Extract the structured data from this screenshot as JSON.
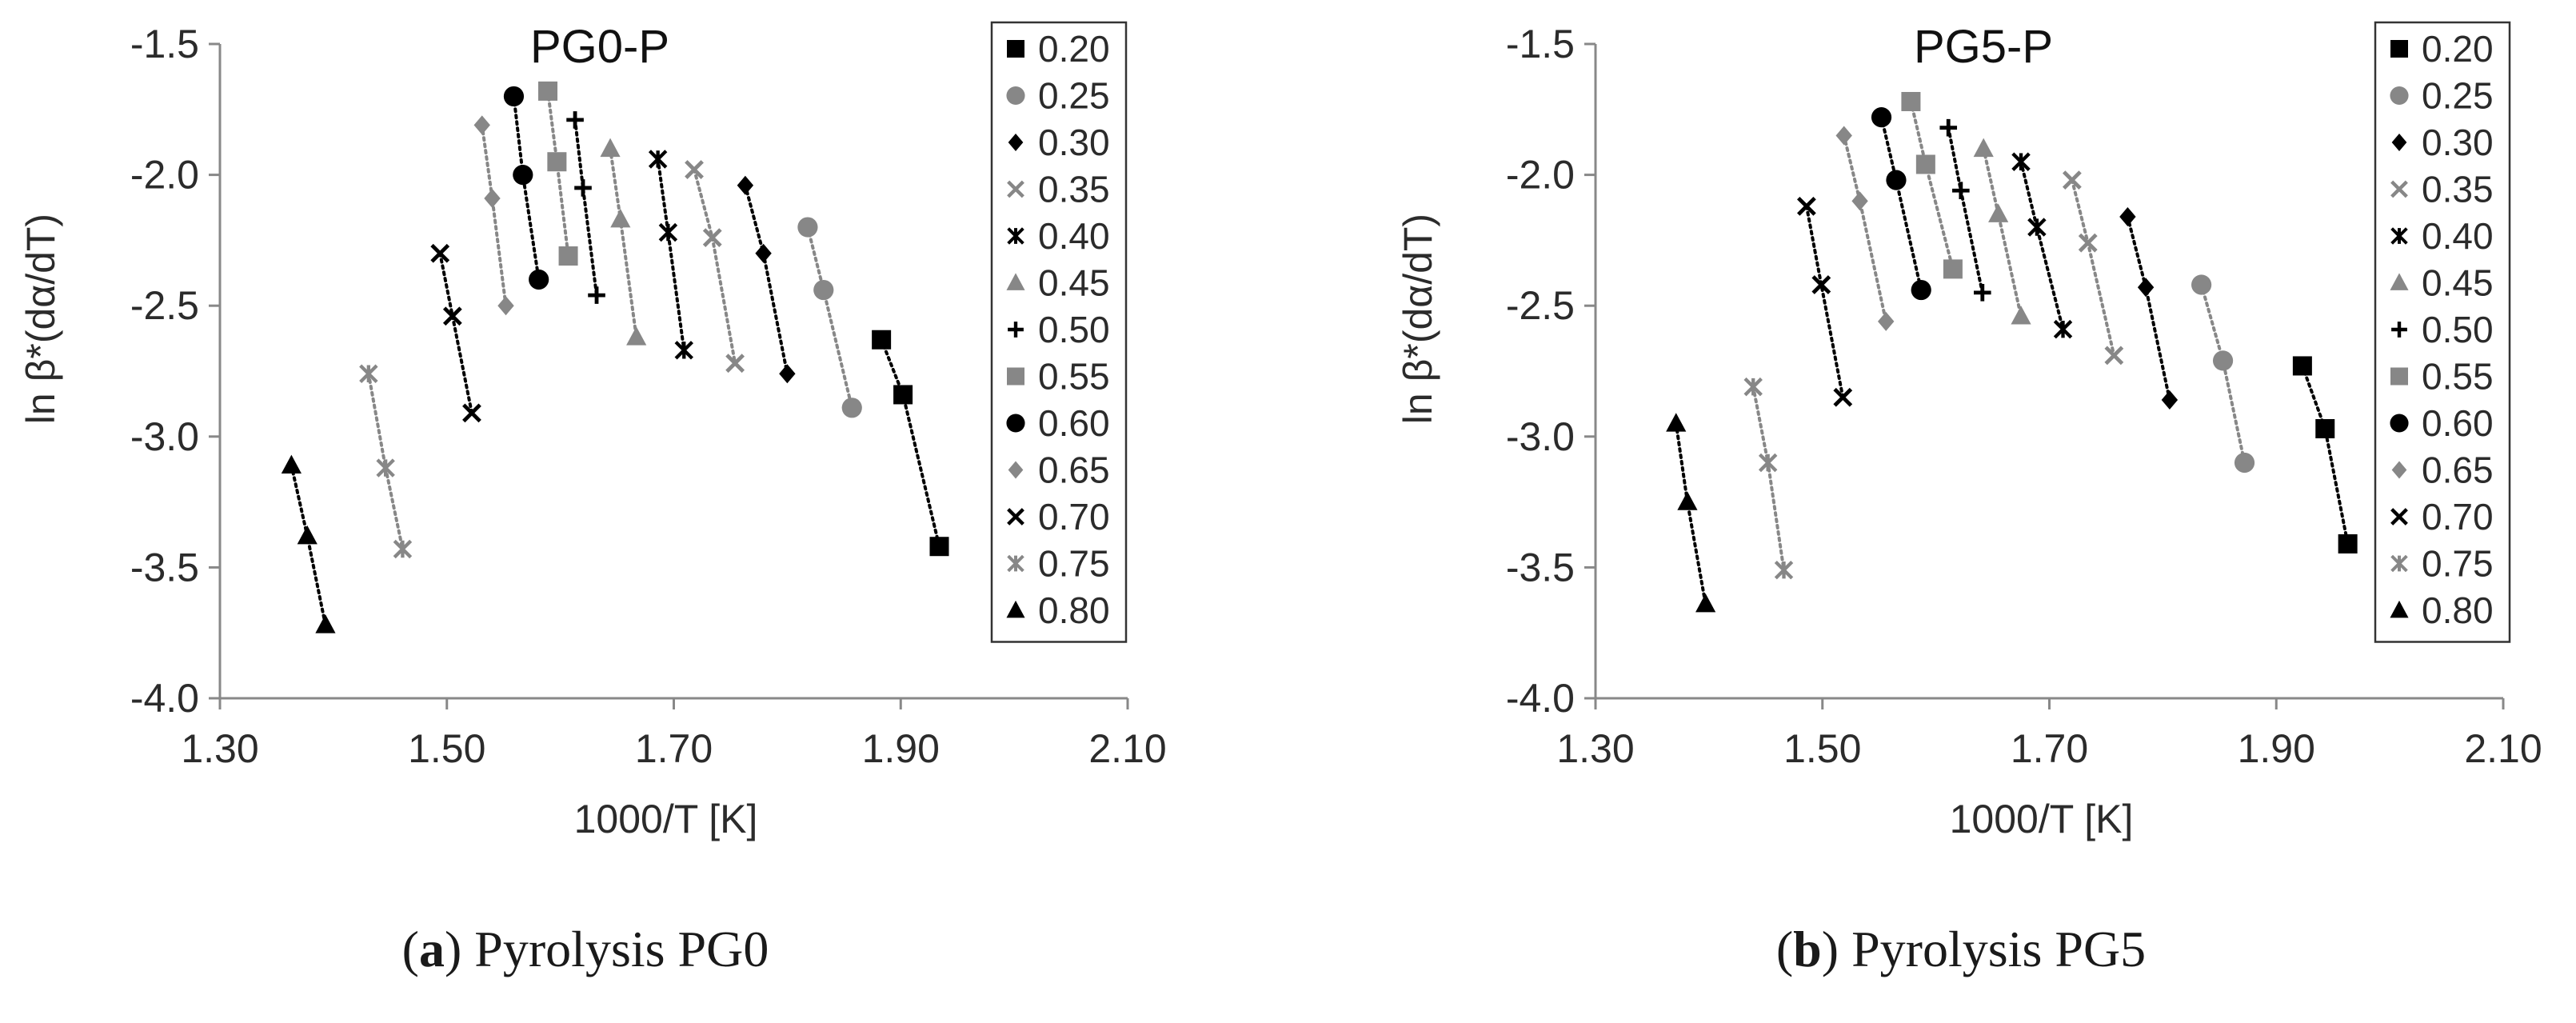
{
  "chart_data": [
    {
      "type": "scatter",
      "title": "PG0-P",
      "xlabel": "1000/T [K]",
      "ylabel": "ln β*(dα/dT)",
      "xlim": [
        1.3,
        2.1
      ],
      "ylim": [
        -4.0,
        -1.5
      ],
      "xticks": [
        "1.30",
        "1.50",
        "1.70",
        "1.90",
        "2.10"
      ],
      "yticks": [
        "-1.5",
        "-2.0",
        "-2.5",
        "-3.0",
        "-3.5",
        "-4.0"
      ],
      "legend_position": "right-inside",
      "series": [
        {
          "name": "0.20",
          "points": [
            [
              1.883,
              -2.63
            ],
            [
              1.902,
              -2.84
            ],
            [
              1.934,
              -3.42
            ]
          ]
        },
        {
          "name": "0.25",
          "points": [
            [
              1.818,
              -2.2
            ],
            [
              1.832,
              -2.44
            ],
            [
              1.857,
              -2.89
            ]
          ]
        },
        {
          "name": "0.30",
          "points": [
            [
              1.763,
              -2.04
            ],
            [
              1.779,
              -2.3
            ],
            [
              1.8,
              -2.76
            ]
          ]
        },
        {
          "name": "0.35",
          "points": [
            [
              1.718,
              -1.98
            ],
            [
              1.734,
              -2.24
            ],
            [
              1.754,
              -2.72
            ]
          ]
        },
        {
          "name": "0.40",
          "points": [
            [
              1.686,
              -1.94
            ],
            [
              1.695,
              -2.22
            ],
            [
              1.709,
              -2.67
            ]
          ]
        },
        {
          "name": "0.45",
          "points": [
            [
              1.644,
              -1.9
            ],
            [
              1.653,
              -2.17
            ],
            [
              1.667,
              -2.62
            ]
          ]
        },
        {
          "name": "0.50",
          "points": [
            [
              1.613,
              -1.79
            ],
            [
              1.62,
              -2.05
            ],
            [
              1.632,
              -2.46
            ]
          ]
        },
        {
          "name": "0.55",
          "points": [
            [
              1.589,
              -1.68
            ],
            [
              1.597,
              -1.95
            ],
            [
              1.607,
              -2.31
            ]
          ]
        },
        {
          "name": "0.60",
          "points": [
            [
              1.559,
              -1.7
            ],
            [
              1.567,
              -2.0
            ],
            [
              1.581,
              -2.4
            ]
          ]
        },
        {
          "name": "0.65",
          "points": [
            [
              1.531,
              -1.81
            ],
            [
              1.54,
              -2.09
            ],
            [
              1.552,
              -2.5
            ]
          ]
        },
        {
          "name": "0.70",
          "points": [
            [
              1.494,
              -2.3
            ],
            [
              1.505,
              -2.54
            ],
            [
              1.522,
              -2.91
            ]
          ]
        },
        {
          "name": "0.75",
          "points": [
            [
              1.431,
              -2.76
            ],
            [
              1.446,
              -3.12
            ],
            [
              1.461,
              -3.43
            ]
          ]
        },
        {
          "name": "0.80",
          "points": [
            [
              1.363,
              -3.11
            ],
            [
              1.377,
              -3.38
            ],
            [
              1.393,
              -3.72
            ]
          ]
        }
      ]
    },
    {
      "type": "scatter",
      "title": "PG5-P",
      "xlabel": "1000/T [K]",
      "ylabel": "ln β*(dα/dT)",
      "xlim": [
        1.3,
        2.1
      ],
      "ylim": [
        -4.0,
        -1.5
      ],
      "xticks": [
        "1.30",
        "1.50",
        "1.70",
        "1.90",
        "2.10"
      ],
      "yticks": [
        "-1.5",
        "-2.0",
        "-2.5",
        "-3.0",
        "-3.5",
        "-4.0"
      ],
      "legend_position": "right-inside",
      "series": [
        {
          "name": "0.20",
          "points": [
            [
              1.923,
              -2.73
            ],
            [
              1.943,
              -2.97
            ],
            [
              1.963,
              -3.41
            ]
          ]
        },
        {
          "name": "0.25",
          "points": [
            [
              1.834,
              -2.42
            ],
            [
              1.853,
              -2.71
            ],
            [
              1.872,
              -3.1
            ]
          ]
        },
        {
          "name": "0.30",
          "points": [
            [
              1.769,
              -2.16
            ],
            [
              1.785,
              -2.43
            ],
            [
              1.806,
              -2.86
            ]
          ]
        },
        {
          "name": "0.35",
          "points": [
            [
              1.72,
              -2.02
            ],
            [
              1.734,
              -2.26
            ],
            [
              1.757,
              -2.69
            ]
          ]
        },
        {
          "name": "0.40",
          "points": [
            [
              1.675,
              -1.95
            ],
            [
              1.689,
              -2.2
            ],
            [
              1.712,
              -2.59
            ]
          ]
        },
        {
          "name": "0.45",
          "points": [
            [
              1.642,
              -1.9
            ],
            [
              1.655,
              -2.15
            ],
            [
              1.675,
              -2.54
            ]
          ]
        },
        {
          "name": "0.50",
          "points": [
            [
              1.611,
              -1.82
            ],
            [
              1.622,
              -2.06
            ],
            [
              1.641,
              -2.45
            ]
          ]
        },
        {
          "name": "0.55",
          "points": [
            [
              1.578,
              -1.72
            ],
            [
              1.591,
              -1.96
            ],
            [
              1.615,
              -2.36
            ]
          ]
        },
        {
          "name": "0.60",
          "points": [
            [
              1.552,
              -1.78
            ],
            [
              1.565,
              -2.02
            ],
            [
              1.587,
              -2.44
            ]
          ]
        },
        {
          "name": "0.65",
          "points": [
            [
              1.519,
              -1.85
            ],
            [
              1.533,
              -2.1
            ],
            [
              1.556,
              -2.56
            ]
          ]
        },
        {
          "name": "0.70",
          "points": [
            [
              1.486,
              -2.12
            ],
            [
              1.499,
              -2.42
            ],
            [
              1.518,
              -2.85
            ]
          ]
        },
        {
          "name": "0.75",
          "points": [
            [
              1.439,
              -2.81
            ],
            [
              1.452,
              -3.1
            ],
            [
              1.466,
              -3.51
            ]
          ]
        },
        {
          "name": "0.80",
          "points": [
            [
              1.371,
              -2.95
            ],
            [
              1.381,
              -3.25
            ],
            [
              1.397,
              -3.64
            ]
          ]
        }
      ]
    }
  ],
  "captions": {
    "a_letter": "a",
    "a_text": "Pyrolysis PG0",
    "b_letter": "b",
    "b_text": "Pyrolysis PG5"
  },
  "colors": {
    "black": "#000000",
    "gray": "#878787",
    "axis": "#888888",
    "text": "#2b2b2b"
  },
  "series_styles": {
    "0.20": {
      "marker": "square",
      "color": "black"
    },
    "0.25": {
      "marker": "circle",
      "color": "gray"
    },
    "0.30": {
      "marker": "diamond",
      "color": "black"
    },
    "0.35": {
      "marker": "x",
      "color": "gray"
    },
    "0.40": {
      "marker": "asterisk",
      "color": "black"
    },
    "0.45": {
      "marker": "triangle",
      "color": "gray"
    },
    "0.50": {
      "marker": "plus",
      "color": "black"
    },
    "0.55": {
      "marker": "square",
      "color": "gray"
    },
    "0.60": {
      "marker": "circle",
      "color": "black"
    },
    "0.65": {
      "marker": "diamond",
      "color": "gray"
    },
    "0.70": {
      "marker": "x",
      "color": "black"
    },
    "0.75": {
      "marker": "asterisk",
      "color": "gray"
    },
    "0.80": {
      "marker": "triangle",
      "color": "black"
    }
  }
}
